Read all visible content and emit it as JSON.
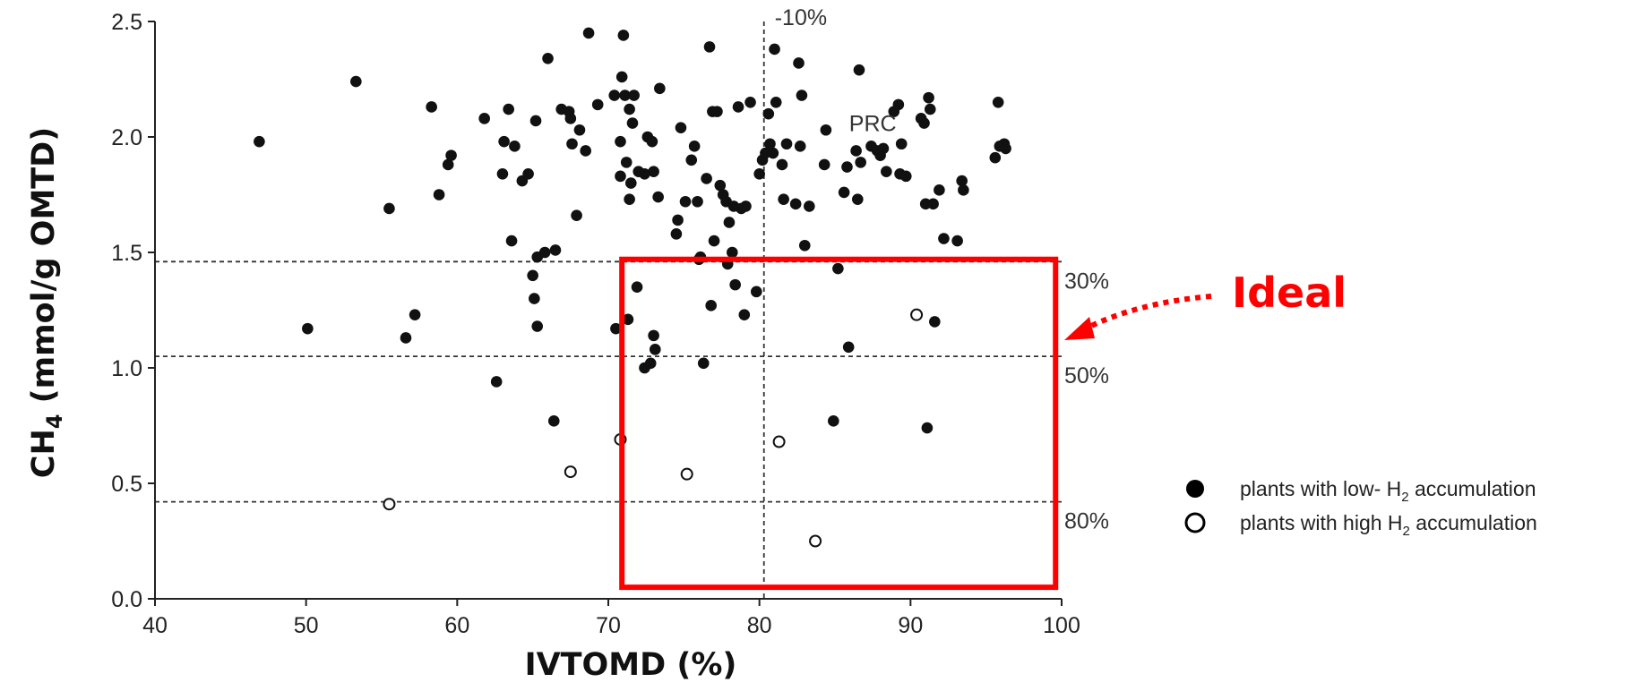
{
  "chart_data": {
    "type": "scatter",
    "xlabel": "IVTOMD (%)",
    "ylabel": "CH",
    "ylabel_sub": "4",
    "ylabel_rest": " (mmol/g OMTD)",
    "xlim": [
      40,
      100
    ],
    "ylim": [
      0,
      2.5
    ],
    "xticks": [
      40,
      50,
      60,
      70,
      80,
      90,
      100
    ],
    "yticks": [
      "0.0",
      "0.5",
      "1.0",
      "1.5",
      "2.0",
      "2.5"
    ],
    "grid": false,
    "reference_lines": {
      "vertical": {
        "x": 80.3,
        "label": "-10%"
      },
      "horizontal": [
        {
          "y": 1.46,
          "label": "30%"
        },
        {
          "y": 1.05,
          "label": "50%"
        },
        {
          "y": 0.42,
          "label": "80%"
        }
      ]
    },
    "highlight_box": {
      "x": [
        70.9,
        99.6
      ],
      "y": [
        0.05,
        1.47
      ],
      "label": "Ideal",
      "color": "#ff0000"
    },
    "text_annotations": [
      {
        "text": "PRC",
        "x": 87.5,
        "y": 2.06
      }
    ],
    "legend": {
      "placement": "right",
      "items": [
        {
          "pre": "plants with low- H",
          "sub": "2",
          "post": " accumulation",
          "marker": "filled"
        },
        {
          "pre": "plants with high H",
          "sub": "2",
          "post": " accumulation",
          "marker": "open"
        }
      ]
    },
    "series": [
      {
        "marker": "filled",
        "points": [
          [
            46.9,
            1.98
          ],
          [
            50.1,
            1.17
          ],
          [
            53.3,
            2.24
          ],
          [
            55.5,
            1.69
          ],
          [
            56.6,
            1.13
          ],
          [
            57.2,
            1.23
          ],
          [
            58.3,
            2.13
          ],
          [
            58.8,
            1.75
          ],
          [
            59.4,
            1.88
          ],
          [
            59.6,
            1.92
          ],
          [
            61.8,
            2.08
          ],
          [
            62.6,
            0.94
          ],
          [
            63.0,
            1.84
          ],
          [
            63.1,
            1.98
          ],
          [
            63.4,
            2.12
          ],
          [
            63.6,
            1.55
          ],
          [
            63.8,
            1.96
          ],
          [
            64.3,
            1.81
          ],
          [
            64.7,
            1.84
          ],
          [
            65.0,
            1.4
          ],
          [
            65.1,
            1.3
          ],
          [
            65.2,
            2.07
          ],
          [
            65.3,
            1.18
          ],
          [
            65.3,
            1.48
          ],
          [
            65.8,
            1.5
          ],
          [
            66.0,
            2.34
          ],
          [
            66.4,
            0.77
          ],
          [
            66.5,
            1.51
          ],
          [
            66.9,
            2.12
          ],
          [
            67.4,
            2.11
          ],
          [
            67.5,
            2.08
          ],
          [
            67.6,
            1.97
          ],
          [
            67.9,
            1.66
          ],
          [
            68.1,
            2.03
          ],
          [
            68.5,
            1.94
          ],
          [
            68.7,
            2.45
          ],
          [
            69.3,
            2.14
          ],
          [
            70.4,
            2.18
          ],
          [
            70.5,
            1.17
          ],
          [
            70.8,
            1.98
          ],
          [
            70.8,
            1.83
          ],
          [
            70.9,
            2.26
          ],
          [
            71.0,
            2.44
          ],
          [
            71.1,
            2.18
          ],
          [
            71.2,
            1.89
          ],
          [
            71.3,
            1.21
          ],
          [
            71.4,
            2.12
          ],
          [
            71.4,
            1.73
          ],
          [
            71.5,
            1.8
          ],
          [
            71.6,
            2.06
          ],
          [
            71.7,
            2.18
          ],
          [
            71.9,
            1.35
          ],
          [
            72.0,
            1.85
          ],
          [
            72.4,
            1.0
          ],
          [
            72.4,
            1.84
          ],
          [
            72.6,
            2.0
          ],
          [
            72.8,
            1.02
          ],
          [
            72.9,
            1.98
          ],
          [
            73.0,
            1.85
          ],
          [
            73.0,
            1.14
          ],
          [
            73.1,
            1.08
          ],
          [
            73.3,
            1.74
          ],
          [
            73.4,
            2.21
          ],
          [
            74.5,
            1.58
          ],
          [
            74.6,
            1.64
          ],
          [
            74.8,
            2.04
          ],
          [
            75.1,
            1.72
          ],
          [
            75.5,
            1.9
          ],
          [
            75.7,
            1.96
          ],
          [
            75.9,
            1.72
          ],
          [
            76.0,
            1.47
          ],
          [
            76.1,
            1.48
          ],
          [
            76.3,
            1.02
          ],
          [
            76.5,
            1.82
          ],
          [
            76.7,
            2.39
          ],
          [
            76.8,
            1.27
          ],
          [
            76.9,
            2.11
          ],
          [
            77.0,
            1.55
          ],
          [
            77.2,
            2.11
          ],
          [
            77.4,
            1.79
          ],
          [
            77.6,
            1.75
          ],
          [
            77.8,
            1.72
          ],
          [
            77.9,
            1.45
          ],
          [
            78.0,
            1.63
          ],
          [
            78.2,
            1.5
          ],
          [
            78.3,
            1.7
          ],
          [
            78.4,
            1.36
          ],
          [
            78.6,
            2.13
          ],
          [
            78.8,
            1.69
          ],
          [
            79.0,
            1.23
          ],
          [
            79.1,
            1.7
          ],
          [
            79.4,
            2.15
          ],
          [
            79.8,
            1.33
          ],
          [
            80.0,
            1.84
          ],
          [
            80.2,
            1.9
          ],
          [
            80.4,
            1.93
          ],
          [
            80.6,
            2.1
          ],
          [
            80.7,
            1.97
          ],
          [
            80.9,
            1.93
          ],
          [
            81.0,
            2.38
          ],
          [
            81.1,
            2.15
          ],
          [
            81.5,
            1.88
          ],
          [
            81.6,
            1.73
          ],
          [
            81.8,
            1.97
          ],
          [
            82.4,
            1.71
          ],
          [
            82.6,
            2.32
          ],
          [
            82.7,
            1.96
          ],
          [
            82.8,
            2.18
          ],
          [
            83.0,
            1.53
          ],
          [
            83.3,
            1.7
          ],
          [
            84.3,
            1.88
          ],
          [
            84.4,
            2.03
          ],
          [
            84.9,
            0.77
          ],
          [
            85.2,
            1.43
          ],
          [
            85.6,
            1.76
          ],
          [
            85.8,
            1.87
          ],
          [
            85.9,
            1.09
          ],
          [
            86.4,
            1.94
          ],
          [
            86.5,
            1.73
          ],
          [
            86.6,
            2.29
          ],
          [
            86.7,
            1.89
          ],
          [
            87.4,
            1.96
          ],
          [
            87.8,
            1.94
          ],
          [
            88.0,
            1.92
          ],
          [
            88.2,
            1.95
          ],
          [
            88.4,
            1.85
          ],
          [
            89.3,
            1.84
          ],
          [
            89.7,
            1.83
          ],
          [
            90.7,
            2.08
          ],
          [
            91.0,
            1.71
          ],
          [
            91.1,
            0.74
          ],
          [
            91.2,
            2.17
          ],
          [
            91.3,
            2.12
          ],
          [
            91.5,
            1.71
          ],
          [
            91.6,
            1.2
          ],
          [
            91.9,
            1.77
          ],
          [
            92.2,
            1.56
          ],
          [
            93.1,
            1.55
          ],
          [
            93.4,
            1.81
          ],
          [
            93.5,
            1.77
          ],
          [
            95.6,
            1.91
          ],
          [
            95.8,
            2.15
          ],
          [
            95.9,
            1.96
          ],
          [
            96.2,
            1.97
          ],
          [
            96.3,
            1.95
          ],
          [
            89.2,
            2.14
          ],
          [
            89.4,
            1.97
          ],
          [
            88.9,
            2.11
          ],
          [
            90.9,
            2.06
          ]
        ]
      },
      {
        "marker": "open",
        "points": [
          [
            55.5,
            0.41
          ],
          [
            67.5,
            0.55
          ],
          [
            70.8,
            0.69
          ],
          [
            75.2,
            0.54
          ],
          [
            81.3,
            0.68
          ],
          [
            83.7,
            0.25
          ],
          [
            90.4,
            1.23
          ]
        ]
      }
    ]
  }
}
